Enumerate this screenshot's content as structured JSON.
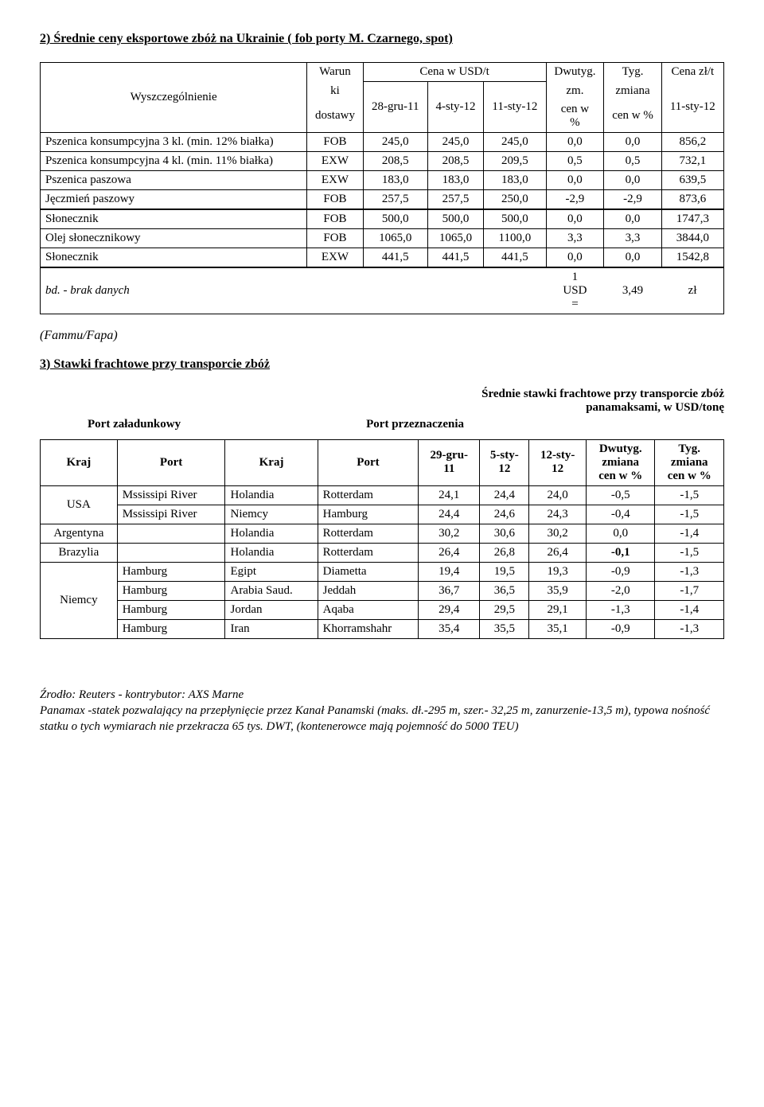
{
  "section2": {
    "title": "2) Średnie ceny eksportowe zbóż na Ukrainie ( fob porty M. Czarnego, spot)",
    "headers": {
      "col1": "Wyszczególnienie",
      "col2_1": "Warun",
      "col2_2": "ki",
      "col2_3": "dostawy",
      "col3": "Cena w USD/t",
      "col3a": "28-gru-11",
      "col3b": "4-sty-12",
      "col3c": "11-sty-12",
      "col4_1": "Dwutyg.",
      "col4_2": "zm.",
      "col4_3": "cen w",
      "col4_4": "%",
      "col5_1": "Tyg.",
      "col5_2": "zmiana",
      "col5_3": "cen w %",
      "col6_1": "Cena zł/t",
      "col6_2": "11-sty-12"
    },
    "rows": [
      {
        "name": "Pszenica konsumpcyjna 3 kl. (min. 12% białka)",
        "cond": "FOB",
        "v1": "245,0",
        "v2": "245,0",
        "v3": "245,0",
        "dw": "0,0",
        "ty": "0,0",
        "zl": "856,2"
      },
      {
        "name": "Pszenica konsumpcyjna 4 kl. (min. 11% białka)",
        "cond": "EXW",
        "v1": "208,5",
        "v2": "208,5",
        "v3": "209,5",
        "dw": "0,5",
        "ty": "0,5",
        "zl": "732,1"
      },
      {
        "name": "Pszenica paszowa",
        "cond": "EXW",
        "v1": "183,0",
        "v2": "183,0",
        "v3": "183,0",
        "dw": "0,0",
        "ty": "0,0",
        "zl": "639,5"
      },
      {
        "name": "Jęczmień paszowy",
        "cond": "FOB",
        "v1": "257,5",
        "v2": "257,5",
        "v3": "250,0",
        "dw": "-2,9",
        "ty": "-2,9",
        "zl": "873,6"
      },
      {
        "name": "Słonecznik",
        "cond": "FOB",
        "v1": "500,0",
        "v2": "500,0",
        "v3": "500,0",
        "dw": "0,0",
        "ty": "0,0",
        "zl": "1747,3"
      },
      {
        "name": "Olej słonecznikowy",
        "cond": "FOB",
        "v1": "1065,0",
        "v2": "1065,0",
        "v3": "1100,0",
        "dw": "3,3",
        "ty": "3,3",
        "zl": "3844,0"
      },
      {
        "name": "Słonecznik",
        "cond": "EXW",
        "v1": "441,5",
        "v2": "441,5",
        "v3": "441,5",
        "dw": "0,0",
        "ty": "0,0",
        "zl": "1542,8"
      }
    ],
    "note": {
      "text": "bd. - brak danych",
      "usd1": "1",
      "usd2": "USD",
      "usd3": "=",
      "rate": "3,49",
      "cur": "zł"
    },
    "source": "(Fammu/Fapa)"
  },
  "section3": {
    "title": "3) Stawki frachtowe przy transporcie zbóż",
    "subtitle1": "Średnie stawki frachtowe przy transporcie zbóż",
    "subtitle2": "panamaksami, w USD/tonę",
    "port_load": "Port załadunkowy",
    "port_dest": "Port przeznaczenia",
    "headers": {
      "kraj1": "Kraj",
      "port1": "Port",
      "kraj2": "Kraj",
      "port2": "Port",
      "d1a": "29-gru-",
      "d1b": "11",
      "d2a": "5-sty-",
      "d2b": "12",
      "d3a": "12-sty-",
      "d3b": "12",
      "dw1": "Dwutyg.",
      "dw2": "zmiana",
      "dw3": "cen w %",
      "ty1": "Tyg.",
      "ty2": "zmiana",
      "ty3": "cen w %"
    },
    "rows": [
      {
        "k1": "USA",
        "p1": "Mssissipi River",
        "k2": "Holandia",
        "p2": "Rotterdam",
        "v1": "24,1",
        "v2": "24,4",
        "v3": "24,0",
        "dw": "-0,5",
        "ty": "-1,5"
      },
      {
        "k1": "",
        "p1": "Mssissipi River",
        "k2": "Niemcy",
        "p2": "Hamburg",
        "v1": "24,4",
        "v2": "24,6",
        "v3": "24,3",
        "dw": "-0,4",
        "ty": "-1,5"
      },
      {
        "k1": "Argentyna",
        "p1": "",
        "k2": "Holandia",
        "p2": "Rotterdam",
        "v1": "30,2",
        "v2": "30,6",
        "v3": "30,2",
        "dw": "0,0",
        "ty": "-1,4"
      },
      {
        "k1": "Brazylia",
        "p1": "",
        "k2": "Holandia",
        "p2": "Rotterdam",
        "v1": "26,4",
        "v2": "26,8",
        "v3": "26,4",
        "dw": "-0,1",
        "ty": "-1,5",
        "dwbold": true
      },
      {
        "k1": "",
        "p1": "Hamburg",
        "k2": "Egipt",
        "p2": "Diametta",
        "v1": "19,4",
        "v2": "19,5",
        "v3": "19,3",
        "dw": "-0,9",
        "ty": "-1,3"
      },
      {
        "k1": "Niemcy",
        "p1": "Hamburg",
        "k2": "Arabia Saud.",
        "p2": "Jeddah",
        "v1": "36,7",
        "v2": "36,5",
        "v3": "35,9",
        "dw": "-2,0",
        "ty": "-1,7"
      },
      {
        "k1": "",
        "p1": "Hamburg",
        "k2": "Jordan",
        "p2": "Aqaba",
        "v1": "29,4",
        "v2": "29,5",
        "v3": "29,1",
        "dw": "-1,3",
        "ty": "-1,4"
      },
      {
        "k1": "",
        "p1": "Hamburg",
        "k2": "Iran",
        "p2": "Khorramshahr",
        "v1": "35,4",
        "v2": "35,5",
        "v3": "35,1",
        "dw": "-0,9",
        "ty": "-1,3"
      }
    ]
  },
  "footnote": {
    "l1": "Źrodło: Reuters - kontrybutor: AXS Marne",
    "l2": "Panamax -statek pozwalający na przepłynięcie przez Kanał Panamski (maks. dł.-295 m, szer.- 32,25 m, zanurzenie-13,5 m), typowa nośność statku o tych wymiarach nie przekracza 65 tys. DWT, (kontenerowce mają pojemność do 5000 TEU)"
  }
}
